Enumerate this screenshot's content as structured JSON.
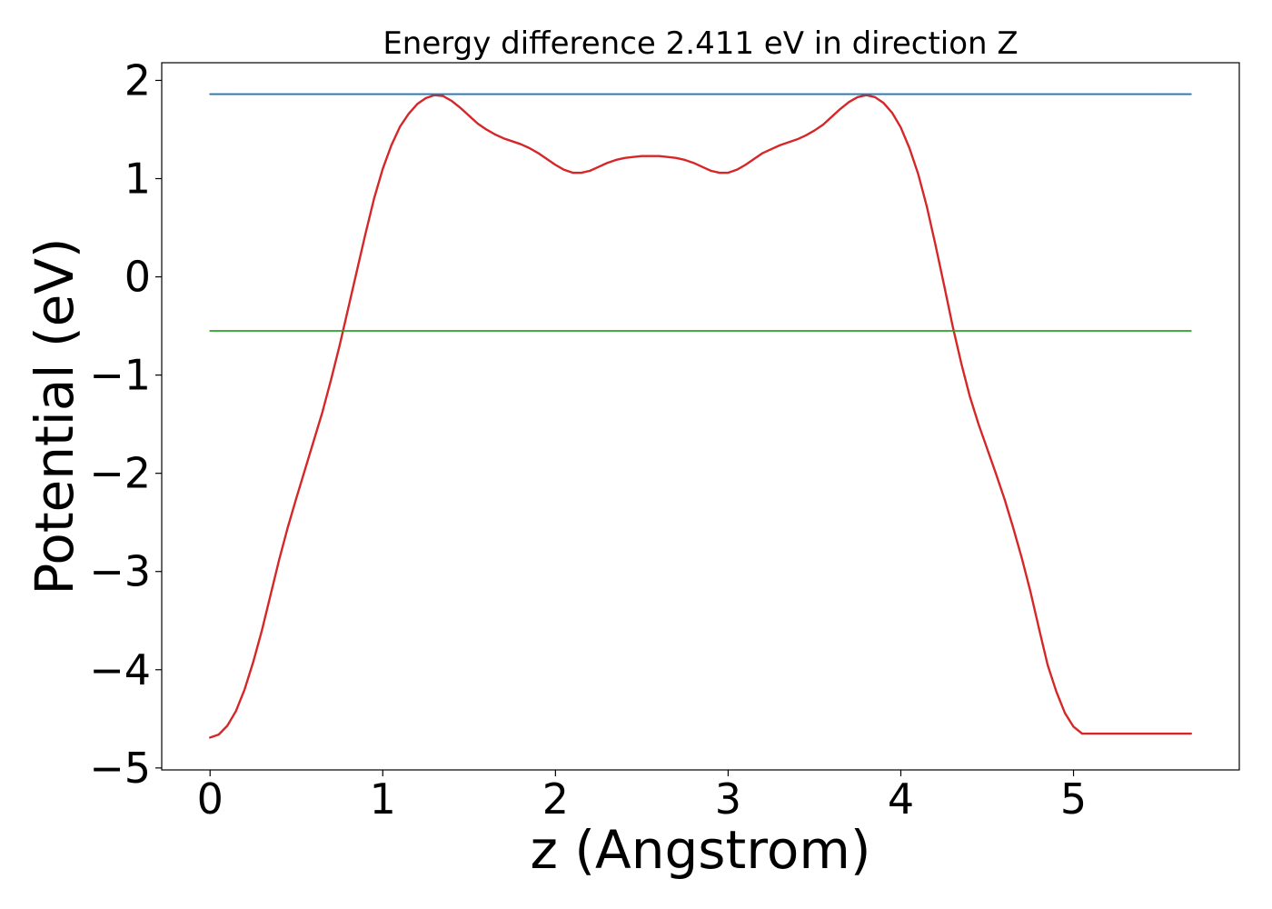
{
  "chart_data": {
    "type": "line",
    "title": "Energy difference 2.411 eV in direction Z",
    "xlabel": "z (Angstrom)",
    "ylabel": "Potential (eV)",
    "xlim": [
      -0.28,
      5.96
    ],
    "ylim": [
      -5.02,
      2.18
    ],
    "xticks": [
      0,
      1,
      2,
      3,
      4,
      5
    ],
    "xtick_labels": [
      "0",
      "1",
      "2",
      "3",
      "4",
      "5"
    ],
    "yticks": [
      2,
      1,
      0,
      -1,
      -2,
      -3,
      -4,
      -5
    ],
    "ytick_labels": [
      "2",
      "1",
      "0",
      "−1",
      "−2",
      "−3",
      "−4",
      "−5"
    ],
    "grid": false,
    "legend": "none",
    "series": [
      {
        "kind": "curve",
        "color": "#d62728",
        "x": [
          0,
          0.05,
          0.1,
          0.15,
          0.2,
          0.25,
          0.3,
          0.35,
          0.4,
          0.45,
          0.5,
          0.55,
          0.6,
          0.65,
          0.7,
          0.75,
          0.8,
          0.85,
          0.9,
          0.95,
          1.0,
          1.05,
          1.1,
          1.15,
          1.2,
          1.25,
          1.3,
          1.35,
          1.4,
          1.45,
          1.5,
          1.55,
          1.6,
          1.65,
          1.7,
          1.75,
          1.8,
          1.85,
          1.9,
          1.95,
          2.0,
          2.05,
          2.1,
          2.15,
          2.2,
          2.25,
          2.3,
          2.35,
          2.4,
          2.45,
          2.5,
          2.55,
          2.6,
          2.65,
          2.7,
          2.75,
          2.8,
          2.85,
          2.9,
          2.95,
          3.0,
          3.05,
          3.1,
          3.15,
          3.2,
          3.25,
          3.3,
          3.35,
          3.4,
          3.45,
          3.5,
          3.55,
          3.6,
          3.65,
          3.7,
          3.75,
          3.8,
          3.85,
          3.9,
          3.95,
          4.0,
          4.05,
          4.1,
          4.15,
          4.2,
          4.25,
          4.3,
          4.35,
          4.4,
          4.45,
          4.5,
          4.55,
          4.6,
          4.65,
          4.7,
          4.75,
          4.8,
          4.85,
          4.9,
          4.95,
          5.0,
          5.05,
          5.1,
          5.15,
          5.2,
          5.25,
          5.3,
          5.35,
          5.4,
          5.45,
          5.5,
          5.55,
          5.6,
          5.65,
          5.68
        ],
        "y": [
          -4.69,
          -4.66,
          -4.57,
          -4.42,
          -4.2,
          -3.92,
          -3.6,
          -3.24,
          -2.88,
          -2.55,
          -2.25,
          -1.96,
          -1.67,
          -1.38,
          -1.05,
          -0.7,
          -0.32,
          0.06,
          0.44,
          0.8,
          1.1,
          1.34,
          1.53,
          1.66,
          1.76,
          1.82,
          1.85,
          1.84,
          1.79,
          1.72,
          1.64,
          1.56,
          1.5,
          1.45,
          1.41,
          1.38,
          1.35,
          1.31,
          1.26,
          1.2,
          1.14,
          1.09,
          1.06,
          1.06,
          1.08,
          1.12,
          1.16,
          1.19,
          1.21,
          1.22,
          1.23,
          1.23,
          1.23,
          1.22,
          1.21,
          1.19,
          1.16,
          1.12,
          1.08,
          1.06,
          1.06,
          1.09,
          1.14,
          1.2,
          1.26,
          1.3,
          1.34,
          1.37,
          1.4,
          1.44,
          1.49,
          1.55,
          1.63,
          1.71,
          1.78,
          1.83,
          1.85,
          1.83,
          1.77,
          1.67,
          1.52,
          1.31,
          1.05,
          0.72,
          0.33,
          -0.08,
          -0.5,
          -0.88,
          -1.22,
          -1.5,
          -1.75,
          -2.0,
          -2.26,
          -2.55,
          -2.86,
          -3.2,
          -3.58,
          -3.95,
          -4.22,
          -4.44,
          -4.58,
          -4.65,
          -4.65,
          -4.65,
          -4.65,
          -4.65,
          -4.65,
          -4.65,
          -4.65,
          -4.65,
          -4.65,
          -4.65,
          -4.65,
          -4.65,
          -4.65
        ]
      },
      {
        "kind": "hline",
        "color": "#1f77b4",
        "x": [
          0,
          5.68
        ],
        "y": [
          1.86,
          1.86
        ]
      },
      {
        "kind": "hline",
        "color": "#2ca02c",
        "x": [
          0,
          5.68
        ],
        "y": [
          -0.55,
          -0.55
        ]
      }
    ]
  }
}
